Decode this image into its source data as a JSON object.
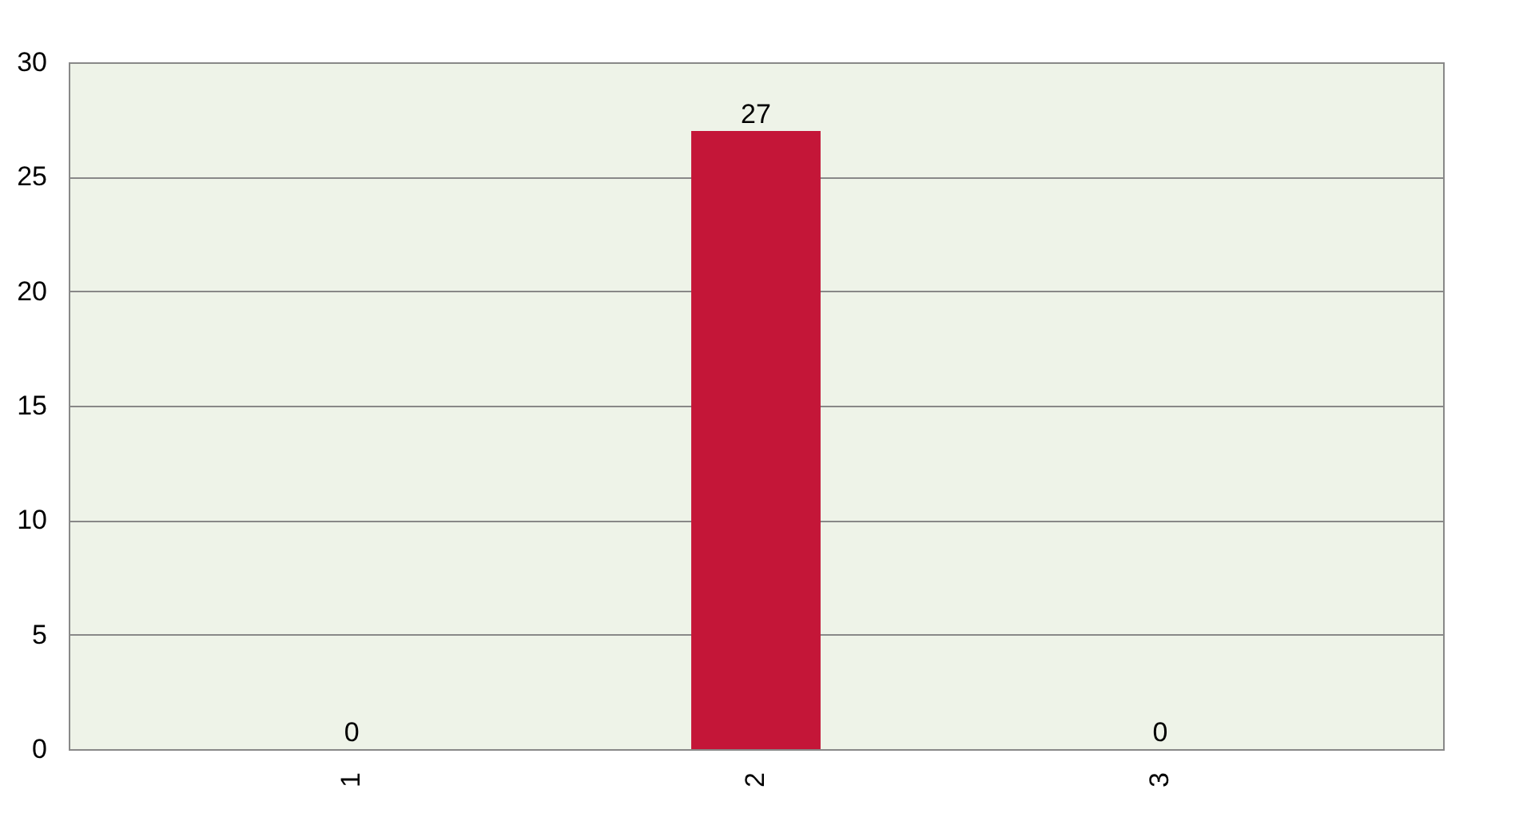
{
  "chart_data": {
    "type": "bar",
    "categories": [
      "1",
      "2",
      "3"
    ],
    "values": [
      0,
      27,
      0
    ],
    "color": "#c41638",
    "ylim": [
      0,
      30
    ],
    "yticks": [
      0,
      5,
      10,
      15,
      20,
      25,
      30
    ],
    "grid": "y",
    "data_labels": true
  }
}
